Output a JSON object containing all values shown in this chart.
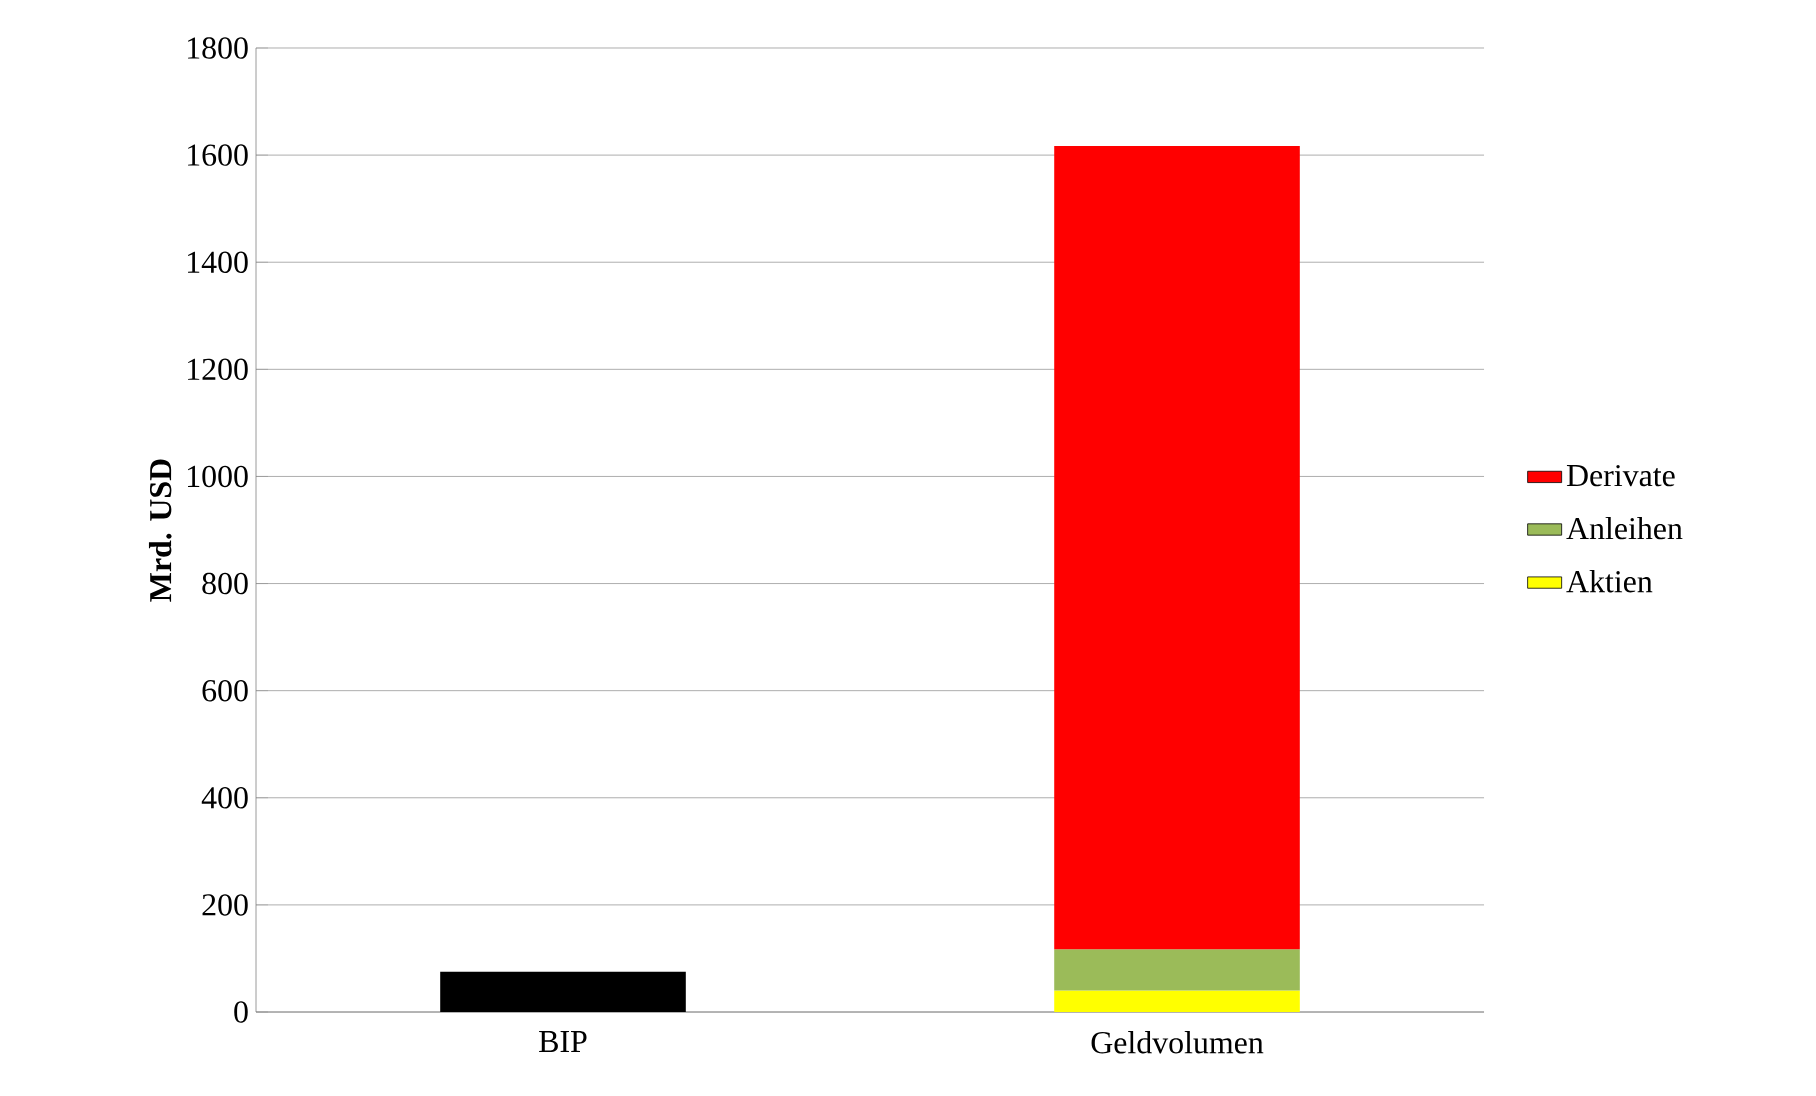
{
  "chart_data": {
    "type": "bar",
    "stacked": true,
    "ylabel": "Mrd. USD",
    "categories": [
      "BIP",
      "Geldvolumen"
    ],
    "series": [
      {
        "color": "#000000",
        "values": [
          75,
          null
        ]
      },
      {
        "name": "Aktien",
        "color": "#ffff00",
        "values": [
          null,
          40
        ]
      },
      {
        "name": "Anleihen",
        "color": "#9bbb59",
        "values": [
          null,
          77
        ]
      },
      {
        "name": "Derivate",
        "color": "#ff0000",
        "values": [
          null,
          1500
        ]
      }
    ],
    "ylim": [
      0,
      1800
    ],
    "yticks": [
      0,
      200,
      400,
      600,
      800,
      1000,
      1200,
      1400,
      1600,
      1800
    ],
    "grid": "y",
    "legend": "right"
  }
}
